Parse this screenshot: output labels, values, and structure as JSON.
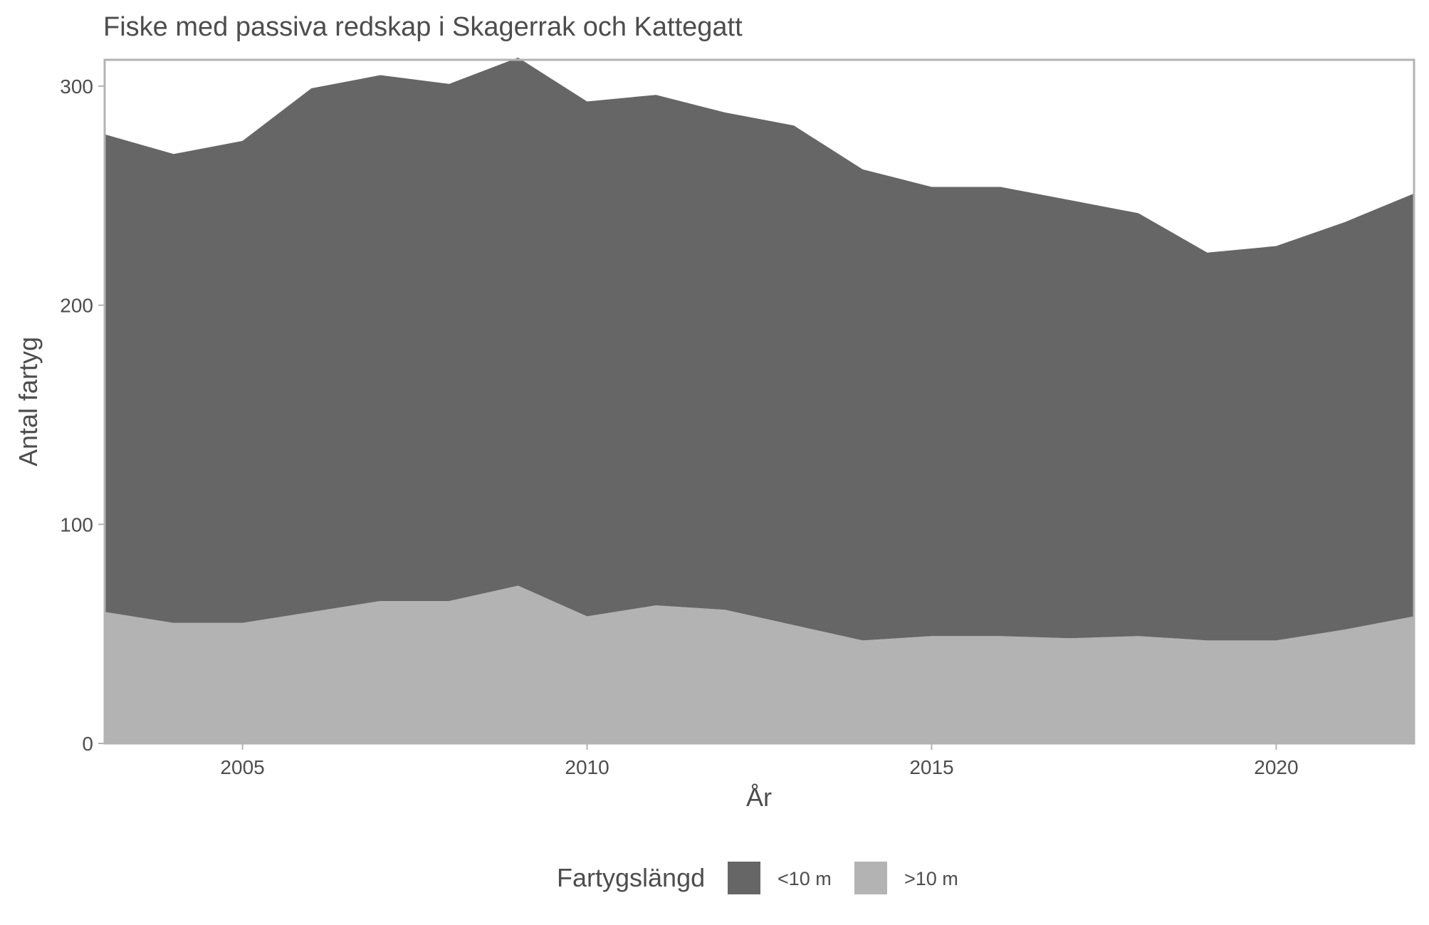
{
  "chart_data": {
    "type": "area",
    "stacked": true,
    "title": "Fiske med passiva redskap i Skagerrak och Kattegatt",
    "xlabel": "År",
    "ylabel": "Antal fartyg",
    "x": [
      2003,
      2004,
      2005,
      2006,
      2007,
      2008,
      2009,
      2010,
      2011,
      2012,
      2013,
      2014,
      2015,
      2016,
      2017,
      2018,
      2019,
      2020,
      2021,
      2022
    ],
    "series": [
      {
        "name": ">10 m",
        "color": "#b3b3b3",
        "values": [
          60,
          55,
          55,
          60,
          65,
          65,
          72,
          58,
          63,
          61,
          54,
          47,
          49,
          49,
          48,
          49,
          47,
          47,
          52,
          58
        ]
      },
      {
        "name": "<10 m",
        "color": "#666666",
        "values": [
          218,
          214,
          220,
          239,
          240,
          236,
          241,
          235,
          233,
          227,
          228,
          215,
          205,
          205,
          200,
          193,
          177,
          180,
          186,
          193
        ]
      }
    ],
    "xlim": [
      2003,
      2022
    ],
    "ylim": [
      0,
      312
    ],
    "xticks": [
      2005,
      2010,
      2015,
      2020
    ],
    "yticks": [
      0,
      100,
      200,
      300
    ],
    "grid": false,
    "legend": {
      "title": "Fartygslängd",
      "position": "bottom",
      "entries": [
        {
          "label": "<10 m",
          "color": "#666666"
        },
        {
          "label": ">10 m",
          "color": "#b3b3b3"
        }
      ]
    }
  }
}
